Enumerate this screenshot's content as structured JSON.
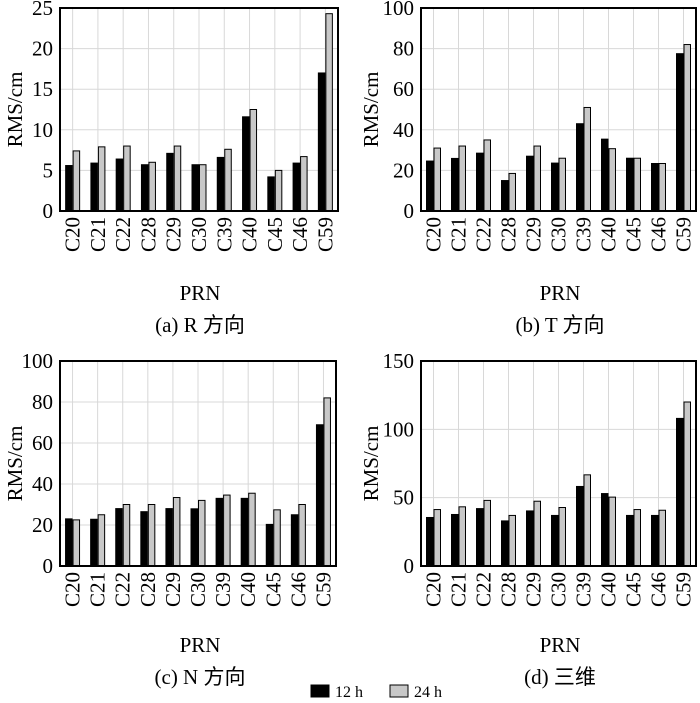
{
  "legend": [
    {
      "label": "12 h",
      "color": "#000000"
    },
    {
      "label": "24 h",
      "color": "#c8c8c8"
    }
  ],
  "chart_data": [
    {
      "type": "bar",
      "caption": "(a) R 方向",
      "xlabel": "PRN",
      "ylabel": "RMS/cm",
      "ylim": [
        0,
        25
      ],
      "yticks": [
        0,
        5,
        10,
        15,
        20,
        25
      ],
      "grid": true,
      "categories": [
        "C20",
        "C21",
        "C22",
        "C28",
        "C29",
        "C30",
        "C39",
        "C40",
        "C45",
        "C46",
        "C59"
      ],
      "series": [
        {
          "name": "12 h",
          "values": [
            5.6,
            5.9,
            6.4,
            5.7,
            7.1,
            5.7,
            6.6,
            11.6,
            4.2,
            5.9,
            17.0
          ]
        },
        {
          "name": "24 h",
          "values": [
            7.4,
            7.9,
            8.0,
            6.0,
            8.0,
            5.7,
            7.6,
            12.5,
            5.0,
            6.7,
            24.3
          ]
        }
      ]
    },
    {
      "type": "bar",
      "caption": "(b) T 方向",
      "xlabel": "PRN",
      "ylabel": "RMS/cm",
      "ylim": [
        0,
        100
      ],
      "yticks": [
        0,
        20,
        40,
        60,
        80,
        100
      ],
      "grid": true,
      "categories": [
        "C20",
        "C21",
        "C22",
        "C28",
        "C29",
        "C30",
        "C39",
        "C40",
        "C45",
        "C46",
        "C59"
      ],
      "series": [
        {
          "name": "12 h",
          "values": [
            24.6,
            25.9,
            28.5,
            15.0,
            27.0,
            23.6,
            43.0,
            35.4,
            26.0,
            23.4,
            77.5
          ]
        },
        {
          "name": "24 h",
          "values": [
            31.0,
            32.0,
            35.0,
            18.5,
            32.0,
            26.0,
            51.0,
            30.7,
            26.0,
            23.4,
            82.0
          ]
        }
      ]
    },
    {
      "type": "bar",
      "caption": "(c)  N 方向",
      "xlabel": "PRN",
      "ylabel": "RMS/cm",
      "ylim": [
        0,
        100
      ],
      "yticks": [
        0,
        20,
        40,
        60,
        80,
        100
      ],
      "grid": true,
      "categories": [
        "C20",
        "C21",
        "C22",
        "C28",
        "C29",
        "C30",
        "C39",
        "C40",
        "C45",
        "C46",
        "C59"
      ],
      "series": [
        {
          "name": "12 h",
          "values": [
            23.0,
            22.8,
            28.0,
            26.5,
            28.0,
            27.9,
            33.0,
            33.0,
            20.3,
            25.0,
            68.9
          ]
        },
        {
          "name": "24 h",
          "values": [
            22.5,
            25.0,
            30.0,
            30.0,
            33.4,
            32.0,
            34.6,
            35.5,
            27.4,
            30.0,
            82.0
          ]
        }
      ]
    },
    {
      "type": "bar",
      "caption": "(d) 三维",
      "xlabel": "PRN",
      "ylabel": "RMS/cm",
      "ylim": [
        0,
        150
      ],
      "yticks": [
        0,
        50,
        100,
        150
      ],
      "grid": true,
      "categories": [
        "C20",
        "C21",
        "C22",
        "C28",
        "C29",
        "C30",
        "C39",
        "C40",
        "C45",
        "C46",
        "C59"
      ],
      "series": [
        {
          "name": "12 h",
          "values": [
            35.5,
            37.7,
            42.0,
            33.0,
            40.3,
            37.0,
            58.2,
            53.0,
            37.0,
            37.0,
            108.0
          ]
        },
        {
          "name": "24 h",
          "values": [
            41.3,
            43.3,
            48.0,
            37.0,
            47.4,
            42.8,
            66.7,
            50.4,
            41.3,
            40.8,
            120.0
          ]
        }
      ]
    }
  ]
}
